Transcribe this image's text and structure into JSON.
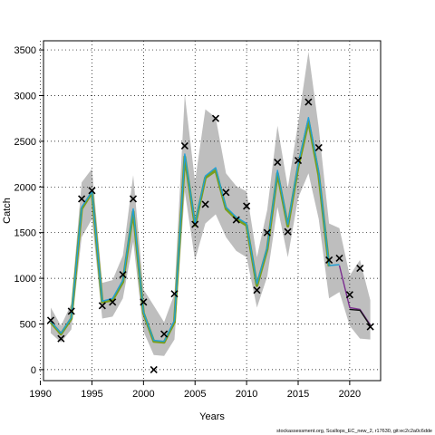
{
  "chart_data": {
    "type": "line",
    "xlabel": "Years",
    "ylabel": "Catch",
    "xlim": [
      1990.3,
      2023.0
    ],
    "ylim": [
      -120,
      3600
    ],
    "xticks": [
      1990,
      1995,
      2000,
      2005,
      2010,
      2015,
      2020
    ],
    "yticks": [
      0,
      500,
      1000,
      1500,
      2000,
      2500,
      3000,
      3500
    ],
    "grid": true,
    "grid_style": "dotted",
    "footnote": "stockassessment.org, Scallops_EC_new_2, r17630, git:ec2c2a0c6dde",
    "observed": {
      "marker": "x",
      "years": [
        1991,
        1992,
        1993,
        1994,
        1995,
        1996,
        1997,
        1998,
        1999,
        2000,
        2001,
        2002,
        2003,
        2004,
        2005,
        2006,
        2007,
        2008,
        2009,
        2010,
        2011,
        2012,
        2013,
        2014,
        2015,
        2016,
        2017,
        2018,
        2019,
        2020,
        2021,
        2022
      ],
      "values": [
        540,
        340,
        640,
        1870,
        1960,
        700,
        740,
        1040,
        1870,
        740,
        0,
        390,
        830,
        2450,
        1590,
        1810,
        2750,
        1940,
        1640,
        1790,
        870,
        1500,
        2270,
        1510,
        2290,
        2930,
        2430,
        1200,
        1220,
        820,
        1110,
        470
      ]
    },
    "estimate_series": [
      {
        "color": "#7a9e1c",
        "years": [
          1991,
          1992,
          1993,
          1994,
          1995,
          1996,
          1997,
          1998,
          1999,
          2000,
          2001,
          2002,
          2003,
          2004,
          2005,
          2006,
          2007,
          2008,
          2009,
          2010,
          2011,
          2012,
          2013,
          2014,
          2015,
          2016,
          2017,
          2018
        ],
        "values": [
          520,
          390,
          560,
          1760,
          1940,
          740,
          760,
          960,
          1730,
          620,
          310,
          300,
          520,
          2330,
          1580,
          2100,
          2180,
          1760,
          1650,
          1580,
          920,
          1320,
          2150,
          1570,
          2220,
          2720,
          2130,
          1130
        ]
      },
      {
        "color": "#1f9fd6",
        "years": [
          1991,
          1992,
          1993,
          1994,
          1995,
          1996,
          1997,
          1998,
          1999,
          2000,
          2001,
          2002,
          2003,
          2004,
          2005,
          2006,
          2007,
          2008,
          2009,
          2010,
          2011,
          2012,
          2013,
          2014,
          2015,
          2016,
          2017,
          2018,
          2019
        ],
        "values": [
          530,
          400,
          570,
          1780,
          1950,
          750,
          780,
          980,
          1760,
          630,
          320,
          310,
          540,
          2360,
          1600,
          2120,
          2210,
          1780,
          1670,
          1600,
          940,
          1340,
          2180,
          1590,
          2250,
          2760,
          2170,
          1140,
          1150
        ]
      },
      {
        "color": "#7b2d8f",
        "years": [
          2019,
          2020,
          2021,
          2022
        ],
        "values": [
          1140,
          680,
          660,
          490
        ]
      },
      {
        "color": "#111111",
        "years": [
          2020,
          2021,
          2022
        ],
        "values": [
          660,
          650,
          480
        ]
      }
    ],
    "confidence_band": {
      "color": "#bebebe",
      "years": [
        1991,
        1992,
        1993,
        1994,
        1995,
        1996,
        1997,
        1998,
        1999,
        2000,
        2001,
        2002,
        2003,
        2004,
        2005,
        2006,
        2007,
        2008,
        2009,
        2010,
        2011,
        2012,
        2013,
        2014,
        2015,
        2016,
        2017,
        2018,
        2019,
        2020,
        2021,
        2022
      ],
      "lower": [
        400,
        300,
        440,
        1450,
        1650,
        560,
        580,
        780,
        1400,
        420,
        160,
        150,
        330,
        1950,
        1200,
        1600,
        1700,
        1450,
        1300,
        1230,
        680,
        1020,
        1780,
        1230,
        1880,
        2150,
        1650,
        780,
        850,
        480,
        340,
        330
      ],
      "upper": [
        680,
        480,
        720,
        2050,
        2200,
        950,
        980,
        1250,
        2130,
        880,
        700,
        520,
        830,
        3010,
        2060,
        2850,
        2760,
        2150,
        2010,
        1950,
        1230,
        1750,
        2670,
        1990,
        2700,
        3480,
        2650,
        1600,
        1550,
        1030,
        1200,
        760
      ]
    }
  }
}
